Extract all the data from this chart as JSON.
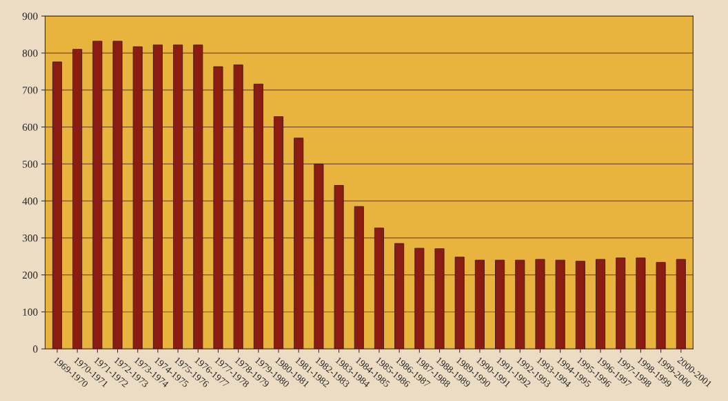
{
  "chart_data": {
    "type": "bar",
    "categories": [
      "1969-1970",
      "1970-1971",
      "1971-1972",
      "1972-1973",
      "1973-1974",
      "1974-1975",
      "1975-1976",
      "1976-1977",
      "1977-1978",
      "1978-1979",
      "1979-1980",
      "1980-1981",
      "1981-1982",
      "1982-1983",
      "1983-1984",
      "1984-1985",
      "1985-1986",
      "1986-1987",
      "1987-1988",
      "1988-1989",
      "1989-1990",
      "1990-1991",
      "1991-1992",
      "1992-1993",
      "1993-1994",
      "1994-1995",
      "1995-1996",
      "1996-1997",
      "1997-1998",
      "1998-1999",
      "1999-2000",
      "2000-2001"
    ],
    "values": [
      776,
      810,
      832,
      832,
      817,
      822,
      822,
      822,
      763,
      768,
      716,
      628,
      570,
      500,
      442,
      385,
      327,
      285,
      272,
      271,
      248,
      240,
      240,
      240,
      242,
      240,
      237,
      242,
      246,
      246,
      234,
      242
    ],
    "color": "#8b1c12",
    "ylim": [
      0,
      900
    ],
    "yticks": [
      0,
      100,
      200,
      300,
      400,
      500,
      600,
      700,
      800,
      900
    ],
    "grid": "y"
  }
}
